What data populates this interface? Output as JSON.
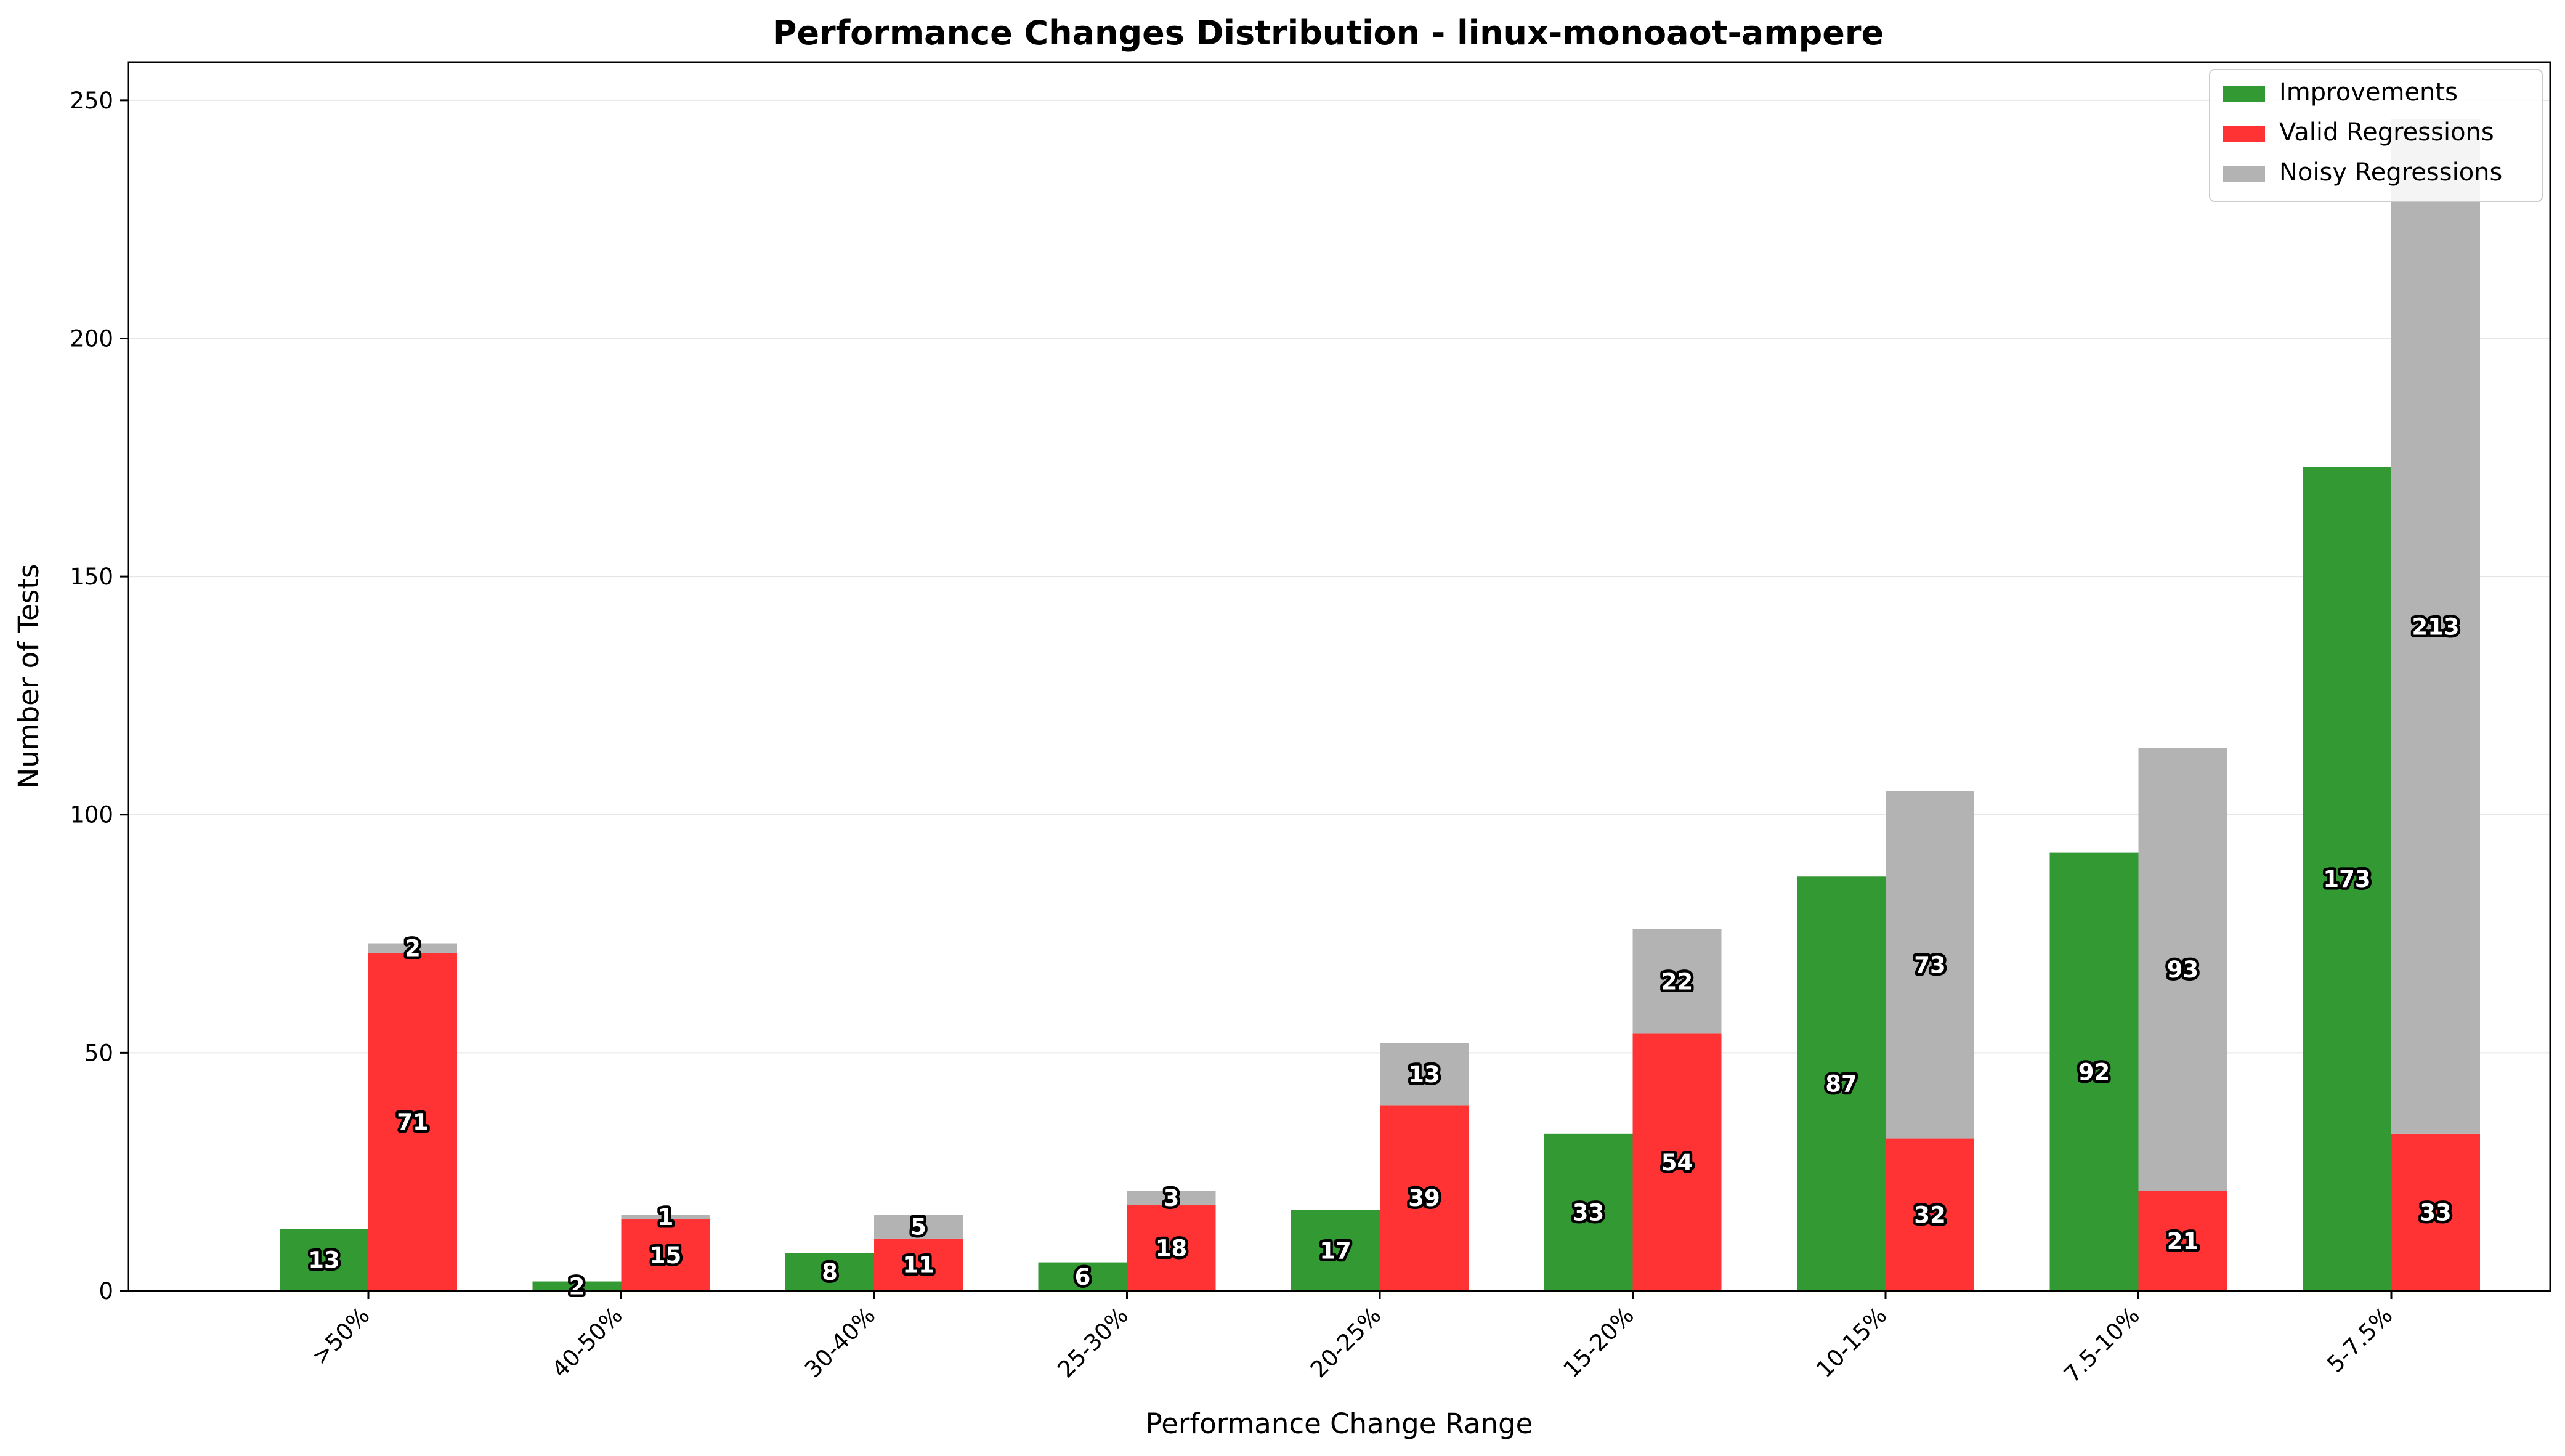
{
  "chart_data": {
    "type": "bar",
    "title": "Performance Changes Distribution - linux-monoaot-ampere",
    "xlabel": "Performance Change Range",
    "ylabel": "Number of Tests",
    "ylim": [
      0,
      258
    ],
    "yticks": [
      0,
      50,
      100,
      150,
      200,
      250
    ],
    "grid": "y",
    "legend_position": "top-right",
    "categories": [
      ">50%",
      "40-50%",
      "30-40%",
      "25-30%",
      "20-25%",
      "15-20%",
      "10-15%",
      "7.5-10%",
      "5-7.5%"
    ],
    "series": [
      {
        "name": "Improvements",
        "color": "#339933",
        "stack": "improvements",
        "values": [
          13,
          2,
          8,
          6,
          17,
          33,
          87,
          92,
          173
        ]
      },
      {
        "name": "Valid Regressions",
        "color": "#ff3333",
        "stack": "regressions",
        "values": [
          71,
          15,
          11,
          18,
          39,
          54,
          32,
          21,
          33
        ]
      },
      {
        "name": "Noisy Regressions",
        "color": "#b3b3b3",
        "stack": "regressions",
        "values": [
          2,
          1,
          5,
          3,
          13,
          22,
          73,
          93,
          213
        ]
      }
    ]
  }
}
